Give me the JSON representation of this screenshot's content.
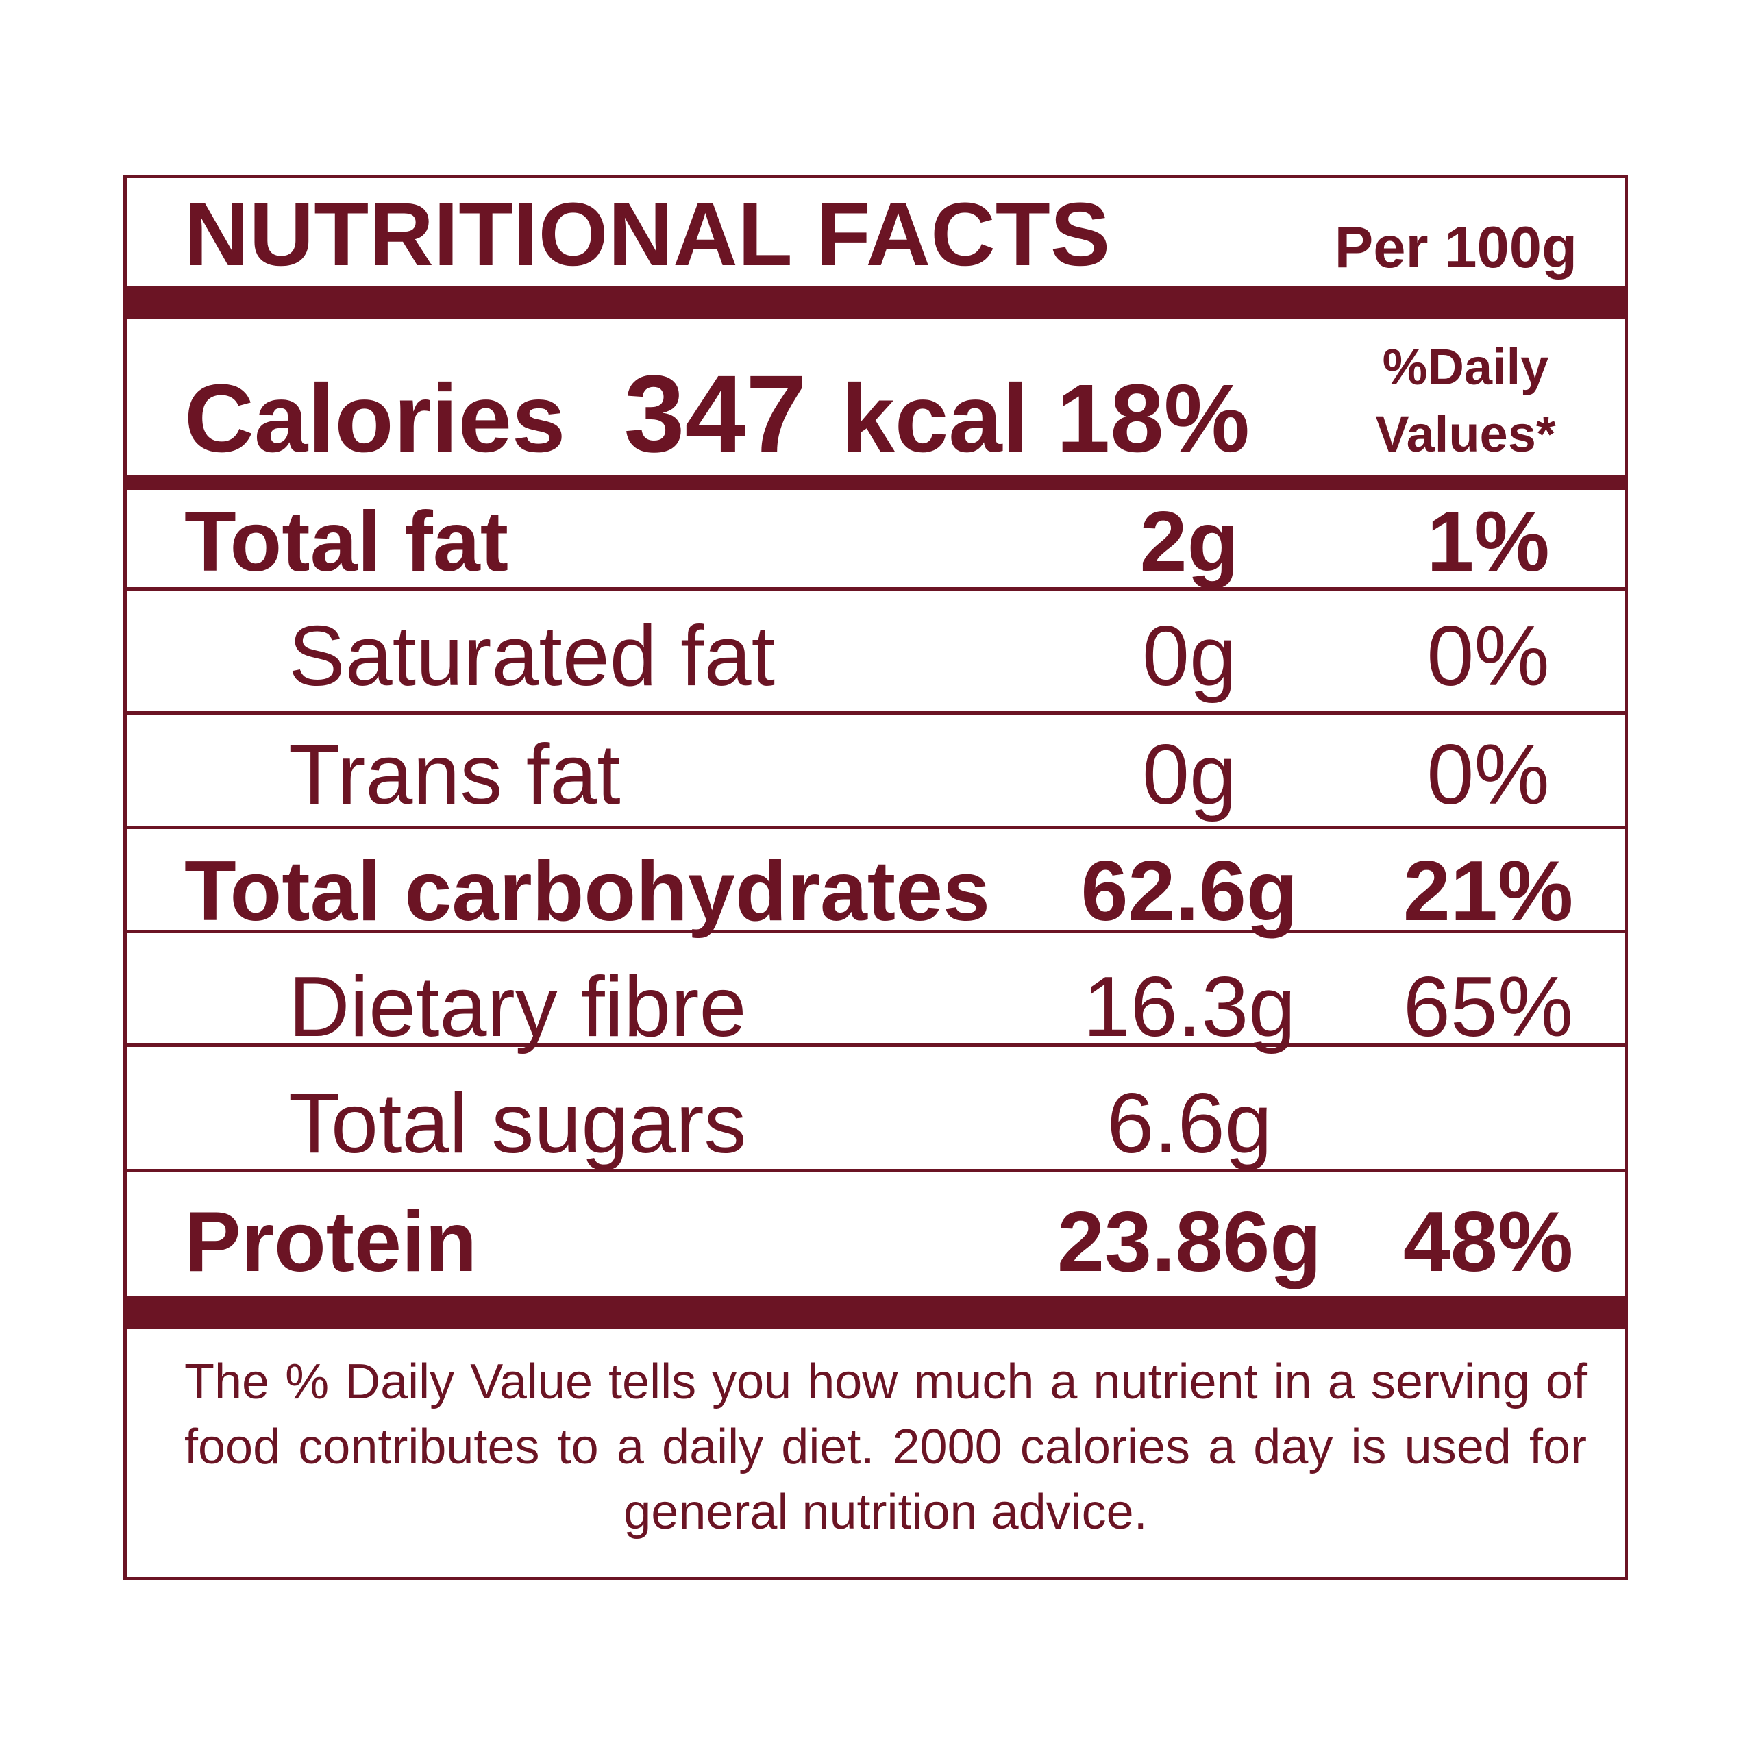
{
  "header": {
    "title": "NUTRITIONAL FACTS",
    "per": "Per 100g"
  },
  "calories": {
    "label": "Calories",
    "value": "347",
    "unit": "kcal",
    "percent": "18%"
  },
  "daily_value_heading": [
    "%Daily",
    "Values*"
  ],
  "rows": [
    {
      "label": "Total fat",
      "amount": "2g",
      "dv": "1%"
    },
    {
      "label": "Saturated fat",
      "amount": "0g",
      "dv": "0%"
    },
    {
      "label": "Trans fat",
      "amount": "0g",
      "dv": "0%"
    },
    {
      "label": "Total carbohydrates",
      "amount": "62.6g",
      "dv": "21%"
    },
    {
      "label": "Dietary fibre",
      "amount": "16.3g",
      "dv": "65%"
    },
    {
      "label": "Total sugars",
      "amount": "6.6g"
    },
    {
      "label": "Protein",
      "amount": "23.86g",
      "dv": "48%"
    }
  ],
  "footer": "The % Daily Value tells you how much a nutrient in a serving of food contributes to a daily diet. 2000 calories a day is used for general nutrition advice."
}
